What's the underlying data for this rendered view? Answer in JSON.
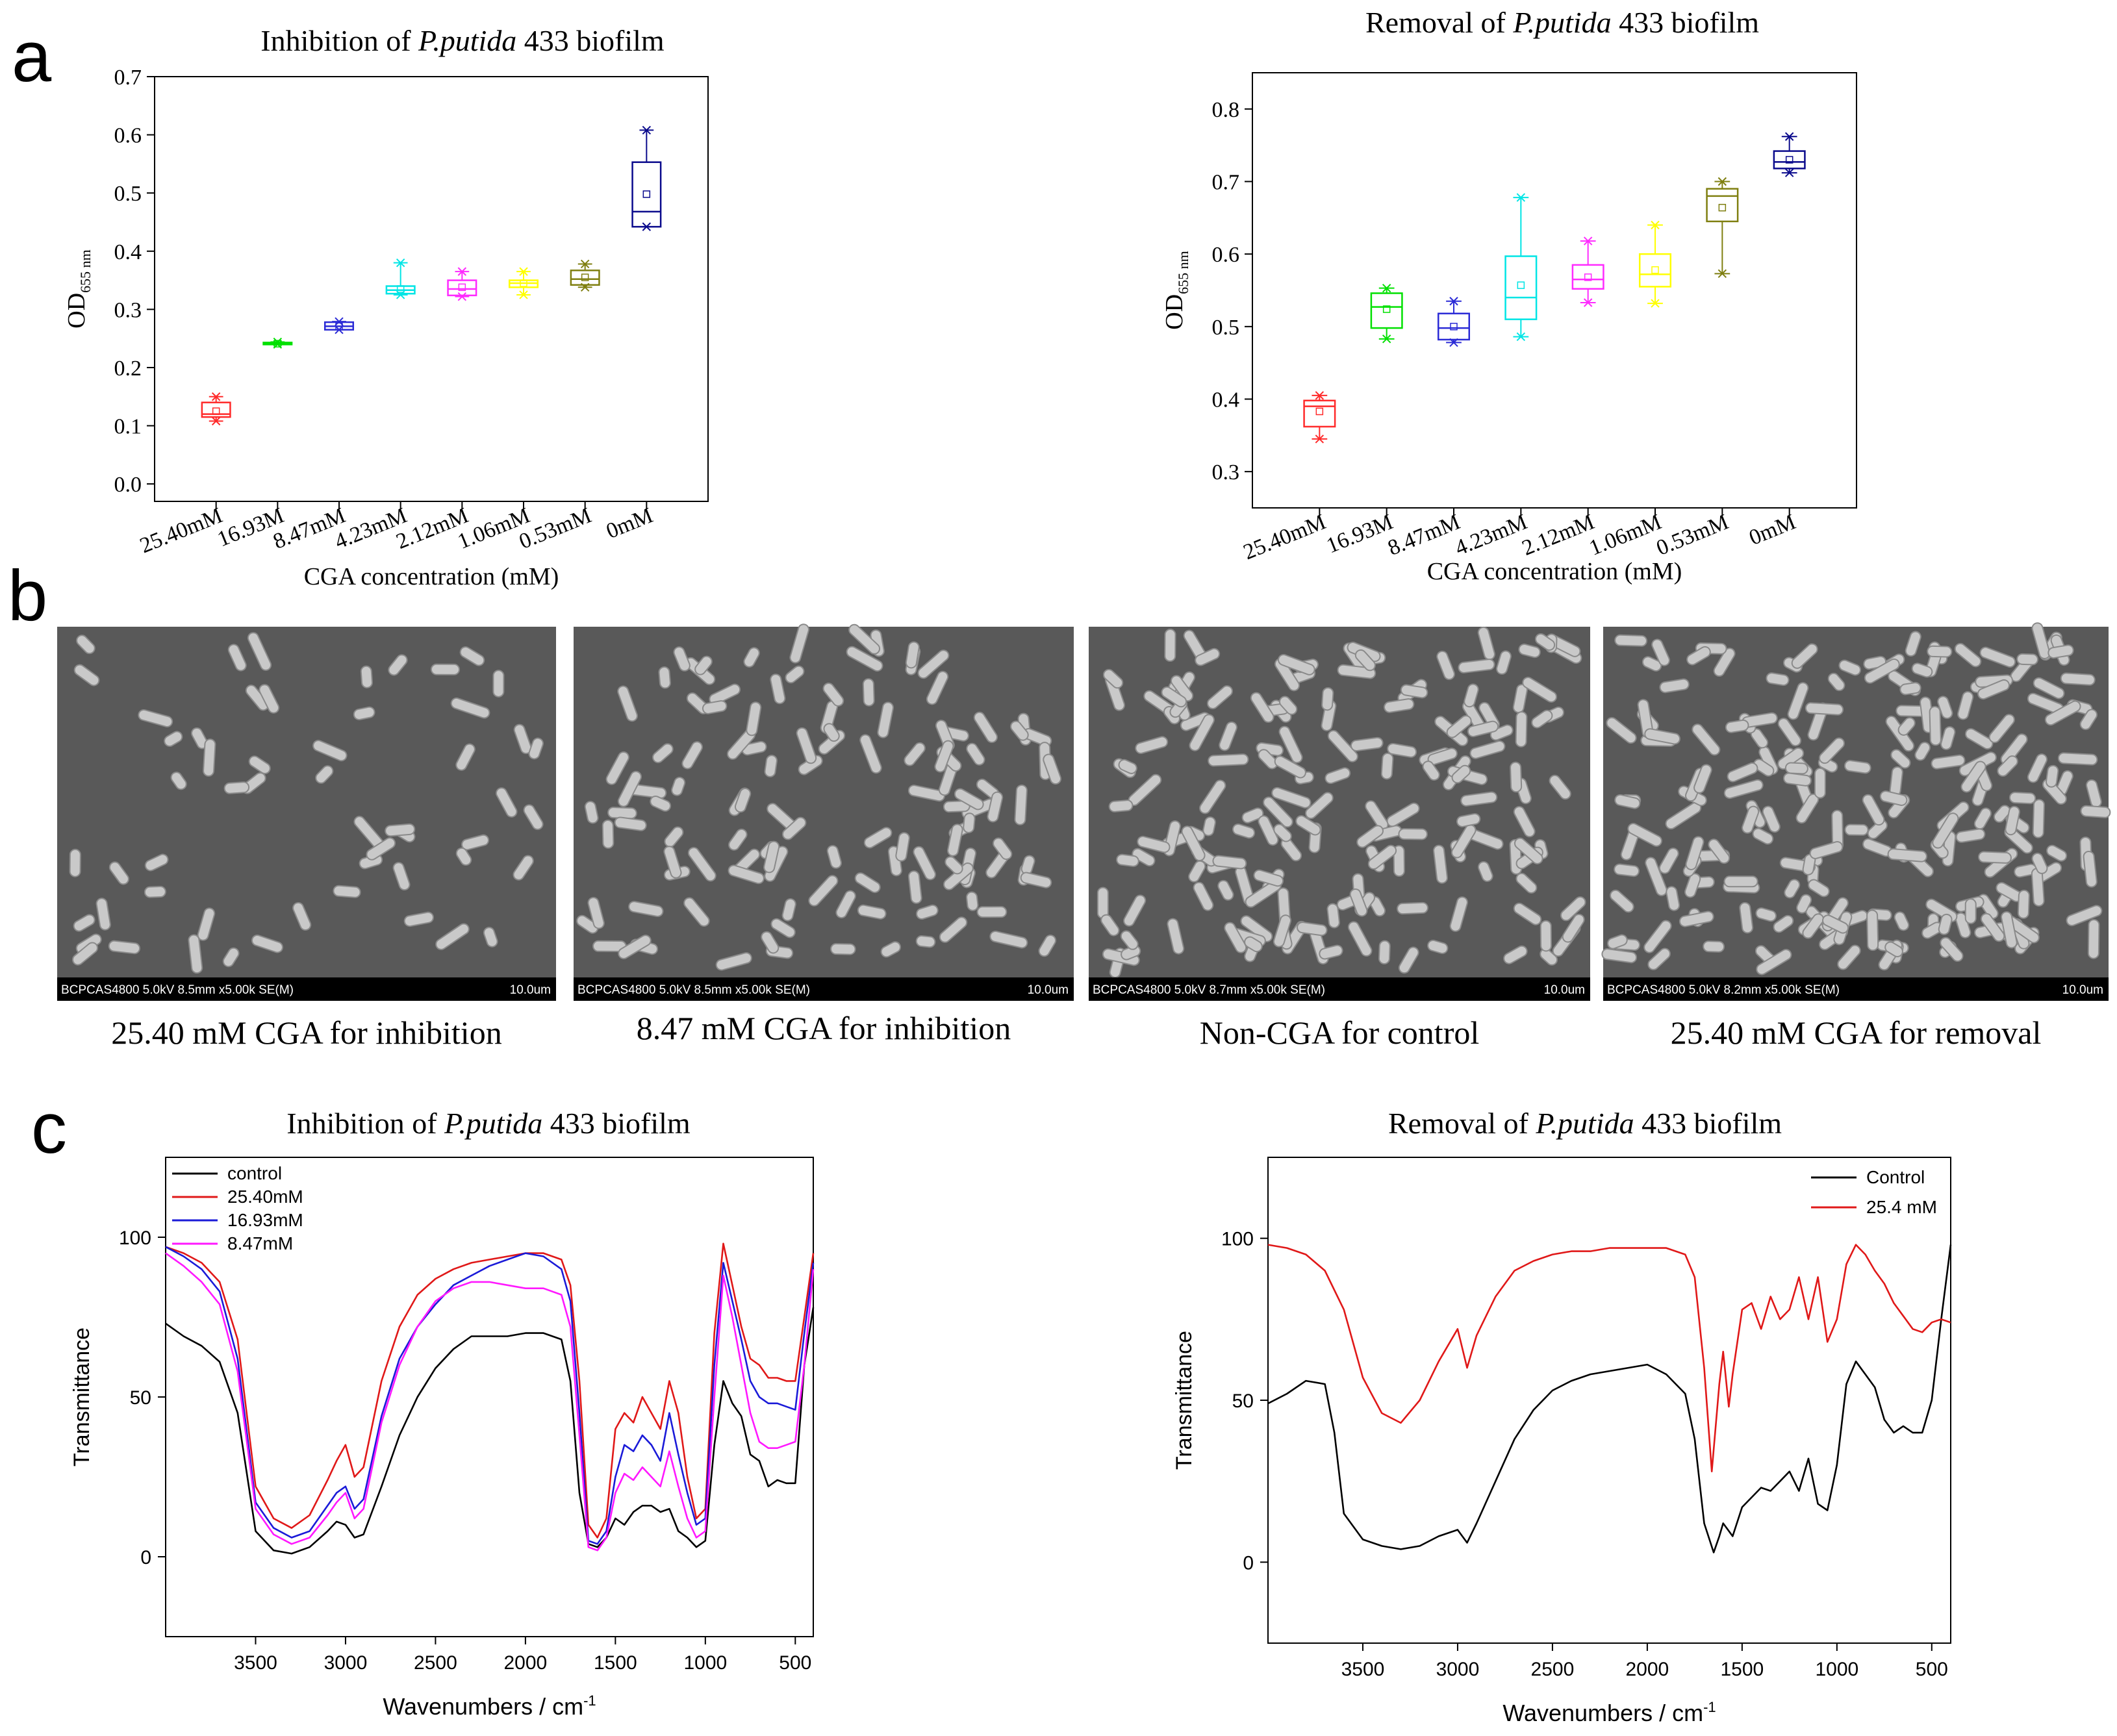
{
  "panel_labels": {
    "a": "a",
    "b": "b",
    "c": "c"
  },
  "title_parts": {
    "inhibition_prefix": "Inhibition of ",
    "removal_prefix": "Removal of ",
    "species": "P.putida",
    "suffix": " 433 biofilm"
  },
  "chart_data": [
    {
      "type": "box",
      "title": "Inhibition of P.putida 433 biofilm",
      "xlabel": "CGA concentration (mM)",
      "ylabel": "OD",
      "ylabel_sub": "655 nm",
      "ylim": [
        -0.03,
        0.7
      ],
      "yticks": [
        0.0,
        0.1,
        0.2,
        0.3,
        0.4,
        0.5,
        0.6,
        0.7
      ],
      "categories": [
        "25.40mM",
        "16.93M",
        "8.47mM",
        "4.23mM",
        "2.12mM",
        "1.06mM",
        "0.53mM",
        "0mM"
      ],
      "colors": [
        "#ff2a2a",
        "#00e000",
        "#2b2bd6",
        "#00e5e5",
        "#ff2aff",
        "#ffff00",
        "#7f7f10",
        "#0a0a8c"
      ],
      "boxes": [
        {
          "min": 0.108,
          "q1": 0.115,
          "median": 0.12,
          "q3": 0.14,
          "max": 0.15,
          "mean": 0.125
        },
        {
          "min": 0.24,
          "q1": 0.24,
          "median": 0.241,
          "q3": 0.243,
          "max": 0.244,
          "mean": 0.241
        },
        {
          "min": 0.265,
          "q1": 0.265,
          "median": 0.271,
          "q3": 0.278,
          "max": 0.279,
          "mean": 0.271
        },
        {
          "min": 0.325,
          "q1": 0.327,
          "median": 0.333,
          "q3": 0.34,
          "max": 0.38,
          "mean": 0.335
        },
        {
          "min": 0.322,
          "q1": 0.324,
          "median": 0.335,
          "q3": 0.35,
          "max": 0.365,
          "mean": 0.338
        },
        {
          "min": 0.325,
          "q1": 0.338,
          "median": 0.345,
          "q3": 0.35,
          "max": 0.365,
          "mean": 0.345
        },
        {
          "min": 0.338,
          "q1": 0.342,
          "median": 0.352,
          "q3": 0.367,
          "max": 0.378,
          "mean": 0.355
        },
        {
          "min": 0.442,
          "q1": 0.442,
          "median": 0.468,
          "q3": 0.553,
          "max": 0.608,
          "mean": 0.498
        }
      ]
    },
    {
      "type": "box",
      "title": "Removal of P.putida 433 biofilm",
      "xlabel": "CGA concentration (mM)",
      "ylabel": "OD",
      "ylabel_sub": "655 nm",
      "ylim": [
        0.25,
        0.85
      ],
      "yticks": [
        0.3,
        0.4,
        0.5,
        0.6,
        0.7,
        0.8
      ],
      "categories": [
        "25.40mM",
        "16.93M",
        "8.47mM",
        "4.23mM",
        "2.12mM",
        "1.06mM",
        "0.53mM",
        "0mM"
      ],
      "colors": [
        "#ff2a2a",
        "#00e000",
        "#2b2bd6",
        "#00e5e5",
        "#ff2aff",
        "#ffff00",
        "#7f7f10",
        "#0a0a8c"
      ],
      "boxes": [
        {
          "min": 0.345,
          "q1": 0.362,
          "median": 0.39,
          "q3": 0.398,
          "max": 0.405,
          "mean": 0.383
        },
        {
          "min": 0.483,
          "q1": 0.498,
          "median": 0.527,
          "q3": 0.546,
          "max": 0.553,
          "mean": 0.524
        },
        {
          "min": 0.478,
          "q1": 0.482,
          "median": 0.498,
          "q3": 0.518,
          "max": 0.535,
          "mean": 0.5
        },
        {
          "min": 0.486,
          "q1": 0.51,
          "median": 0.54,
          "q3": 0.597,
          "max": 0.678,
          "mean": 0.557
        },
        {
          "min": 0.533,
          "q1": 0.552,
          "median": 0.565,
          "q3": 0.585,
          "max": 0.618,
          "mean": 0.568
        },
        {
          "min": 0.532,
          "q1": 0.555,
          "median": 0.572,
          "q3": 0.6,
          "max": 0.64,
          "mean": 0.578
        },
        {
          "min": 0.573,
          "q1": 0.645,
          "median": 0.68,
          "q3": 0.69,
          "max": 0.7,
          "mean": 0.664
        },
        {
          "min": 0.712,
          "q1": 0.718,
          "median": 0.727,
          "q3": 0.742,
          "max": 0.762,
          "mean": 0.73
        }
      ]
    },
    {
      "type": "line",
      "title": "Inhibition of P.putida 433 biofilm",
      "xlabel": "Wavenumbers / cm",
      "xlabel_sup": "-1",
      "ylabel": "Transmittance",
      "xlim": [
        4000,
        400
      ],
      "ylim": [
        -25,
        125
      ],
      "xticks": [
        3500,
        3000,
        2500,
        2000,
        1500,
        1000,
        500
      ],
      "yticks": [
        0,
        50,
        100
      ],
      "legend": "top-left",
      "series": [
        {
          "name": "control",
          "color": "#000000",
          "x": [
            4000,
            3900,
            3800,
            3700,
            3600,
            3500,
            3400,
            3300,
            3200,
            3100,
            3050,
            3000,
            2950,
            2900,
            2800,
            2700,
            2600,
            2500,
            2400,
            2300,
            2200,
            2100,
            2000,
            1900,
            1800,
            1750,
            1700,
            1650,
            1600,
            1550,
            1500,
            1450,
            1400,
            1350,
            1300,
            1250,
            1200,
            1150,
            1100,
            1050,
            1000,
            950,
            900,
            850,
            800,
            750,
            700,
            650,
            600,
            550,
            500,
            450,
            400
          ],
          "y": [
            73,
            69,
            66,
            61,
            45,
            8,
            2,
            1,
            3,
            8,
            11,
            10,
            6,
            7,
            22,
            38,
            50,
            59,
            65,
            69,
            69,
            69,
            70,
            70,
            68,
            55,
            20,
            4,
            3,
            6,
            12,
            10,
            14,
            16,
            16,
            14,
            15,
            8,
            6,
            3,
            5,
            35,
            55,
            48,
            44,
            32,
            30,
            22,
            24,
            23,
            23,
            60,
            78
          ]
        },
        {
          "name": "25.40mM",
          "color": "#e01818",
          "x": [
            4000,
            3900,
            3800,
            3700,
            3600,
            3500,
            3400,
            3300,
            3200,
            3100,
            3050,
            3000,
            2950,
            2900,
            2800,
            2700,
            2600,
            2500,
            2400,
            2300,
            2200,
            2100,
            2000,
            1900,
            1800,
            1750,
            1700,
            1650,
            1600,
            1550,
            1500,
            1450,
            1400,
            1350,
            1300,
            1250,
            1200,
            1150,
            1100,
            1050,
            1000,
            950,
            900,
            850,
            800,
            750,
            700,
            650,
            600,
            550,
            500,
            450,
            400
          ],
          "y": [
            97,
            95,
            92,
            86,
            68,
            22,
            12,
            9,
            13,
            24,
            30,
            35,
            25,
            28,
            55,
            72,
            82,
            87,
            90,
            92,
            93,
            94,
            95,
            95,
            93,
            85,
            55,
            10,
            6,
            12,
            40,
            45,
            42,
            50,
            45,
            40,
            55,
            45,
            25,
            12,
            15,
            70,
            98,
            85,
            72,
            62,
            60,
            56,
            56,
            55,
            55,
            75,
            95
          ]
        },
        {
          "name": "16.93mM",
          "color": "#1a1ad8",
          "x": [
            4000,
            3900,
            3800,
            3700,
            3600,
            3500,
            3400,
            3300,
            3200,
            3100,
            3050,
            3000,
            2950,
            2900,
            2800,
            2700,
            2600,
            2500,
            2400,
            2300,
            2200,
            2100,
            2000,
            1900,
            1800,
            1750,
            1700,
            1650,
            1600,
            1550,
            1500,
            1450,
            1400,
            1350,
            1300,
            1250,
            1200,
            1150,
            1100,
            1050,
            1000,
            950,
            900,
            850,
            800,
            750,
            700,
            650,
            600,
            550,
            500,
            450,
            400
          ],
          "y": [
            97,
            94,
            90,
            83,
            62,
            17,
            9,
            6,
            8,
            16,
            20,
            22,
            15,
            18,
            44,
            62,
            72,
            79,
            85,
            88,
            91,
            93,
            95,
            94,
            90,
            80,
            45,
            5,
            4,
            8,
            25,
            35,
            33,
            38,
            35,
            30,
            45,
            32,
            20,
            10,
            12,
            60,
            92,
            80,
            68,
            55,
            50,
            48,
            48,
            47,
            46,
            70,
            92
          ]
        },
        {
          "name": "8.47mM",
          "color": "#ff18ff",
          "x": [
            4000,
            3900,
            3800,
            3700,
            3600,
            3500,
            3400,
            3300,
            3200,
            3100,
            3050,
            3000,
            2950,
            2900,
            2800,
            2700,
            2600,
            2500,
            2400,
            2300,
            2200,
            2100,
            2000,
            1900,
            1800,
            1750,
            1700,
            1650,
            1600,
            1550,
            1500,
            1450,
            1400,
            1350,
            1300,
            1250,
            1200,
            1150,
            1100,
            1050,
            1000,
            950,
            900,
            850,
            800,
            750,
            700,
            650,
            600,
            550,
            500,
            450,
            400
          ],
          "y": [
            95,
            91,
            86,
            79,
            58,
            15,
            7,
            4,
            6,
            13,
            17,
            20,
            12,
            15,
            42,
            60,
            72,
            80,
            84,
            86,
            86,
            85,
            84,
            84,
            82,
            72,
            38,
            3,
            2,
            6,
            20,
            26,
            24,
            28,
            25,
            22,
            33,
            22,
            12,
            6,
            8,
            50,
            88,
            75,
            60,
            45,
            36,
            34,
            34,
            35,
            36,
            60,
            90
          ]
        }
      ]
    },
    {
      "type": "line",
      "title": "Removal of P.putida 433 biofilm",
      "xlabel": "Wavenumbers / cm",
      "xlabel_sup": "-1",
      "ylabel": "Transmittance",
      "xlim": [
        4000,
        400
      ],
      "ylim": [
        -25,
        125
      ],
      "xticks": [
        3500,
        3000,
        2500,
        2000,
        1500,
        1000,
        500
      ],
      "yticks": [
        0,
        50,
        100
      ],
      "legend": "top-right",
      "series": [
        {
          "name": "Control",
          "color": "#000000",
          "x": [
            4000,
            3900,
            3800,
            3700,
            3650,
            3600,
            3500,
            3400,
            3300,
            3200,
            3100,
            3000,
            2950,
            2900,
            2800,
            2700,
            2600,
            2500,
            2400,
            2300,
            2200,
            2100,
            2000,
            1900,
            1800,
            1750,
            1700,
            1650,
            1620,
            1600,
            1550,
            1500,
            1450,
            1400,
            1350,
            1300,
            1250,
            1200,
            1150,
            1100,
            1050,
            1000,
            950,
            900,
            850,
            800,
            750,
            700,
            650,
            600,
            550,
            500,
            450,
            400
          ],
          "y": [
            49,
            52,
            56,
            55,
            40,
            15,
            7,
            5,
            4,
            5,
            8,
            10,
            6,
            12,
            25,
            38,
            47,
            53,
            56,
            58,
            59,
            60,
            61,
            58,
            52,
            38,
            12,
            3,
            8,
            12,
            8,
            17,
            20,
            23,
            22,
            25,
            28,
            22,
            32,
            18,
            16,
            30,
            55,
            62,
            58,
            54,
            44,
            40,
            42,
            40,
            40,
            50,
            75,
            98
          ]
        },
        {
          "name": "25.4 mM",
          "color": "#e01818",
          "x": [
            4000,
            3900,
            3800,
            3700,
            3600,
            3500,
            3400,
            3300,
            3200,
            3100,
            3000,
            2950,
            2900,
            2800,
            2700,
            2600,
            2500,
            2400,
            2300,
            2200,
            2100,
            2000,
            1900,
            1800,
            1750,
            1700,
            1660,
            1620,
            1600,
            1570,
            1550,
            1500,
            1450,
            1400,
            1350,
            1300,
            1250,
            1200,
            1150,
            1100,
            1050,
            1000,
            950,
            900,
            850,
            800,
            750,
            700,
            650,
            600,
            550,
            500,
            450,
            400
          ],
          "y": [
            98,
            97,
            95,
            90,
            78,
            57,
            46,
            43,
            50,
            62,
            72,
            60,
            70,
            82,
            90,
            93,
            95,
            96,
            96,
            97,
            97,
            97,
            97,
            95,
            88,
            60,
            28,
            55,
            65,
            48,
            58,
            78,
            80,
            72,
            82,
            75,
            78,
            88,
            75,
            88,
            68,
            75,
            92,
            98,
            95,
            90,
            86,
            80,
            76,
            72,
            71,
            74,
            75,
            74
          ]
        }
      ]
    }
  ],
  "sem_panels": [
    {
      "info": "BCPCAS4800 5.0kV 8.5mm x5.00k SE(M)",
      "scale": "10.0um",
      "caption": "25.40 mM CGA for inhibition"
    },
    {
      "info": "BCPCAS4800 5.0kV 8.5mm x5.00k SE(M)",
      "scale": "10.0um",
      "caption": "8.47 mM CGA for inhibition"
    },
    {
      "info": "BCPCAS4800 5.0kV 8.7mm x5.00k SE(M)",
      "scale": "10.0um",
      "caption": "Non-CGA for control"
    },
    {
      "info": "BCPCAS4800 5.0kV 8.2mm x5.00k SE(M)",
      "scale": "10.0um",
      "caption": "25.40 mM CGA for removal"
    }
  ]
}
